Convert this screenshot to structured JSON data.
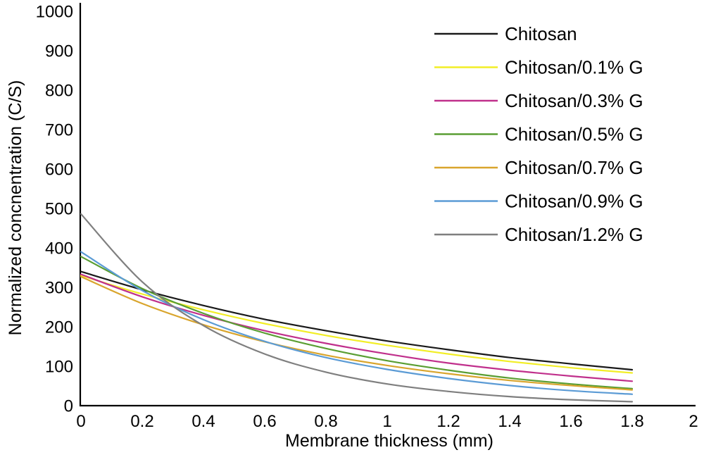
{
  "chart_data": {
    "type": "line",
    "title": "",
    "xlabel": "Membrane thickness (mm)",
    "ylabel": "Normalized concnentration (C/S)",
    "xlim": [
      0,
      2
    ],
    "ylim": [
      0,
      1000
    ],
    "grid": false,
    "legend_position": "top-right",
    "x_ticks": [
      "0",
      "0.2",
      "0.4",
      "0.6",
      "0.8",
      "1",
      "1.2",
      "1.4",
      "1.6",
      "1.8",
      "2"
    ],
    "y_ticks": [
      "0",
      "100",
      "200",
      "300",
      "400",
      "500",
      "600",
      "700",
      "800",
      "900",
      "1000"
    ],
    "x": [
      0,
      0.2,
      0.4,
      0.6,
      0.8,
      1.0,
      1.2,
      1.4,
      1.6,
      1.8
    ],
    "series": [
      {
        "name": "Chitosan",
        "color": "#1a1a1a",
        "values": [
          340,
          294,
          254,
          219,
          190,
          164,
          142,
          122,
          106,
          91
        ]
      },
      {
        "name": "Chitosan/0.1% G",
        "color": "#f2ee27",
        "values": [
          330,
          283,
          243,
          208,
          178,
          153,
          131,
          112,
          96,
          83
        ]
      },
      {
        "name": "Chitosan/0.3% G",
        "color": "#c0308c",
        "values": [
          333,
          276,
          229,
          190,
          158,
          131,
          108,
          90,
          75,
          62
        ]
      },
      {
        "name": "Chitosan/0.5% G",
        "color": "#5a9e33",
        "values": [
          378,
          297,
          234,
          184,
          145,
          114,
          90,
          70,
          55,
          43
        ]
      },
      {
        "name": "Chitosan/0.7% G",
        "color": "#d9a52d",
        "values": [
          327,
          259,
          205,
          162,
          128,
          102,
          81,
          64,
          51,
          40
        ]
      },
      {
        "name": "Chitosan/0.9% G",
        "color": "#5b9bd5",
        "values": [
          390,
          292,
          218,
          163,
          122,
          92,
          69,
          51,
          38,
          29
        ]
      },
      {
        "name": "Chitosan/1.2% G",
        "color": "#7f7f7f",
        "values": [
          486,
          314,
          203,
          131,
          85,
          55,
          36,
          23,
          15,
          10
        ]
      }
    ],
    "axis_color": "#000000"
  }
}
